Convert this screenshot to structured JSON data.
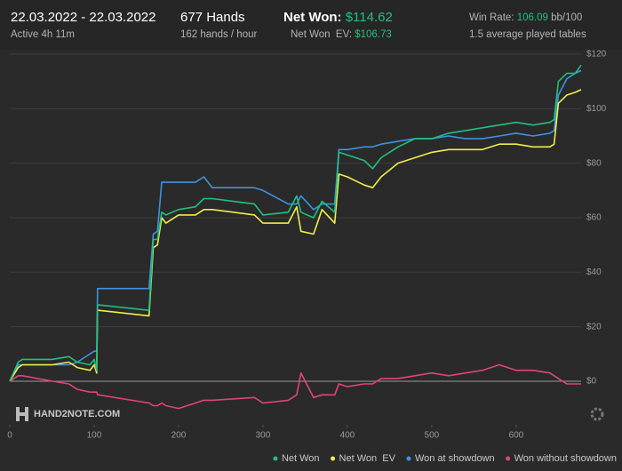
{
  "header": {
    "date_range": "22.03.2022 - 22.03.2022",
    "active": "Active 4h 11m",
    "hands": "677 Hands",
    "hands_per_hour": "162 hands / hour",
    "net_won_label": "Net Won:",
    "net_won_value": "$114.62",
    "net_won_ev_label": "Net Won  EV:",
    "net_won_ev_value": "$106.73",
    "win_rate_label": "Win Rate:",
    "win_rate_value": "106.09",
    "win_rate_unit": "bb/100",
    "tables": "1.5 average played tables"
  },
  "watermark": "HAND2NOTE.COM",
  "chart_data": {
    "type": "line",
    "x": [
      0,
      10,
      15,
      50,
      70,
      80,
      95,
      100,
      103,
      104,
      105,
      165,
      170,
      175,
      180,
      185,
      200,
      220,
      230,
      240,
      290,
      300,
      330,
      340,
      345,
      360,
      370,
      385,
      390,
      400,
      420,
      430,
      440,
      460,
      480,
      500,
      520,
      540,
      560,
      580,
      600,
      620,
      640,
      645,
      650,
      660,
      670,
      677
    ],
    "series": [
      {
        "name": "Net Won",
        "color": "#22c07f",
        "values": [
          0,
          7,
          8,
          8,
          9,
          7,
          6,
          8,
          4,
          28,
          28,
          26,
          52,
          52,
          62,
          61,
          63,
          64,
          67,
          67,
          65,
          61,
          62,
          68,
          62,
          60,
          66,
          62,
          84,
          83,
          81,
          78,
          82,
          86,
          89,
          89,
          91,
          92,
          93,
          94,
          95,
          94,
          95,
          96,
          110,
          113,
          113,
          116
        ]
      },
      {
        "name": "Net Won  EV",
        "color": "#f2ee4a",
        "values": [
          0,
          5,
          6,
          6,
          7,
          5,
          4,
          6,
          3,
          26,
          26,
          24,
          49,
          50,
          60,
          58,
          61,
          61,
          63,
          63,
          61,
          58,
          58,
          64,
          55,
          54,
          63,
          58,
          76,
          75,
          72,
          71,
          75,
          80,
          82,
          84,
          85,
          85,
          85,
          87,
          87,
          86,
          86,
          87,
          102,
          105,
          106,
          107
        ]
      },
      {
        "name": "Won at showdown",
        "color": "#3f92e2",
        "values": [
          0,
          6,
          6,
          6,
          6,
          7,
          10,
          11,
          11,
          34,
          34,
          34,
          54,
          55,
          73,
          73,
          73,
          73,
          75,
          71,
          71,
          70,
          65,
          65,
          68,
          63,
          65,
          65,
          85,
          85,
          86,
          86,
          87,
          88,
          89,
          89,
          90,
          89,
          89,
          90,
          91,
          90,
          91,
          92,
          105,
          111,
          113,
          114
        ]
      },
      {
        "name": "Won without showdown",
        "color": "#e2437c",
        "values": [
          0,
          2,
          2,
          0,
          -1,
          -3,
          -4,
          -4,
          -4,
          -5,
          -5,
          -8,
          -9,
          -9,
          -8,
          -9,
          -10,
          -8,
          -7,
          -7,
          -6,
          -8,
          -7,
          -5,
          3,
          -6,
          -5,
          -5,
          -1,
          -2,
          -1,
          -1,
          1,
          1,
          2,
          3,
          2,
          3,
          4,
          6,
          4,
          4,
          3,
          2,
          1,
          -1,
          -1,
          -1
        ]
      }
    ],
    "xlim": [
      0,
      677
    ],
    "xticks": [
      0,
      100,
      200,
      300,
      400,
      500,
      600
    ],
    "ylim": [
      -16,
      120
    ],
    "yticks": [
      {
        "value": 0,
        "label": "$0"
      },
      {
        "value": 20,
        "label": "$20"
      },
      {
        "value": 40,
        "label": "$40"
      },
      {
        "value": 60,
        "label": "$60"
      },
      {
        "value": 80,
        "label": "$80"
      },
      {
        "value": 100,
        "label": "$100"
      },
      {
        "value": 120,
        "label": "$120"
      }
    ],
    "grid": true,
    "legend": "bottom-right"
  }
}
